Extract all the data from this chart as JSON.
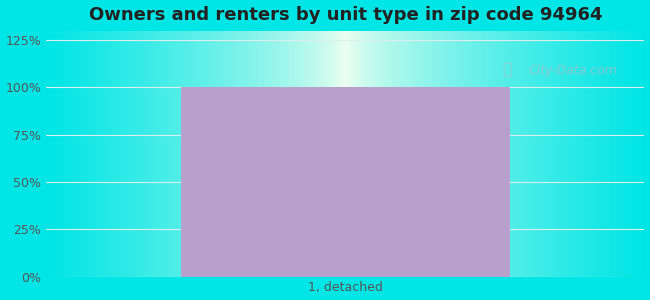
{
  "title": "Owners and renters by unit type in zip code 94964",
  "categories": [
    "1, detached"
  ],
  "values": [
    100
  ],
  "bar_color": "#b8a0cc",
  "bar_alpha": 1.0,
  "yticks": [
    0,
    25,
    50,
    75,
    100,
    125
  ],
  "yticklabels": [
    "0%",
    "25%",
    "50%",
    "75%",
    "100%",
    "125%"
  ],
  "ylim": [
    0,
    130
  ],
  "title_fontsize": 13,
  "tick_fontsize": 9,
  "xlabel_fontsize": 9,
  "bg_outer_color": [
    0.0,
    0.898,
    0.898
  ],
  "bg_inner_color": [
    0.94,
    1.0,
    0.94
  ],
  "watermark_text": "City-Data.com",
  "watermark_color": "#b0bcc8",
  "watermark_alpha": 0.75,
  "grid_color": "#ddeeee",
  "grid_linewidth": 0.8
}
